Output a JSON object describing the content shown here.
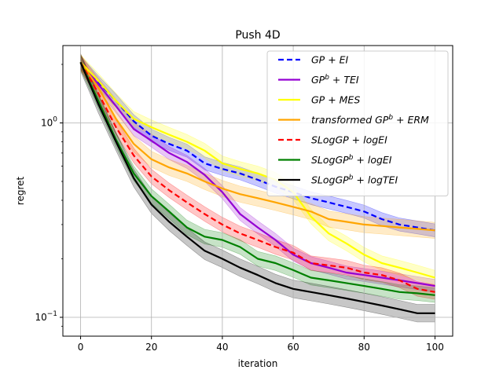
{
  "chart_data": {
    "type": "line",
    "title": "Push 4D",
    "xlabel": "iteration",
    "ylabel": "regret",
    "xlim": [
      -5,
      105
    ],
    "ylim": [
      0.08,
      2.5
    ],
    "yscale": "log",
    "grid": true,
    "legend_position": "top-right",
    "x_ticks": [
      0,
      20,
      40,
      60,
      80,
      100
    ],
    "x_tick_labels": [
      "0",
      "20",
      "40",
      "60",
      "80",
      "100"
    ],
    "y_ticks": [
      1.0,
      0.1
    ],
    "y_tick_labels": [
      "10^0",
      "10^-1"
    ],
    "series": [
      {
        "name": "GP + EI",
        "legend_label": "GP + EI",
        "color": "#0000ff",
        "dash": "dashed",
        "x": [
          0,
          5,
          10,
          15,
          20,
          25,
          30,
          35,
          40,
          45,
          50,
          55,
          60,
          65,
          70,
          75,
          80,
          85,
          90,
          95,
          100
        ],
        "y": [
          2.05,
          1.62,
          1.3,
          1.02,
          0.86,
          0.78,
          0.72,
          0.62,
          0.58,
          0.55,
          0.51,
          0.47,
          0.44,
          0.41,
          0.39,
          0.37,
          0.35,
          0.32,
          0.3,
          0.29,
          0.28
        ],
        "band": [
          0.08,
          0.08,
          0.08,
          0.08,
          0.08,
          0.08,
          0.08,
          0.08,
          0.08,
          0.08,
          0.08,
          0.08,
          0.08,
          0.08,
          0.08,
          0.08,
          0.08,
          0.08,
          0.08,
          0.08,
          0.08
        ]
      },
      {
        "name": "GP^b + TEI",
        "legend_label": "GP + TEI",
        "legend_sup": "b",
        "color": "#9400d3",
        "dash": "solid",
        "x": [
          0,
          5,
          10,
          15,
          20,
          25,
          30,
          35,
          40,
          45,
          50,
          55,
          60,
          65,
          70,
          75,
          80,
          85,
          90,
          95,
          100
        ],
        "y": [
          2.05,
          1.58,
          1.22,
          0.93,
          0.81,
          0.7,
          0.63,
          0.54,
          0.44,
          0.34,
          0.29,
          0.25,
          0.21,
          0.19,
          0.18,
          0.17,
          0.165,
          0.16,
          0.155,
          0.15,
          0.145
        ],
        "band": [
          0.08,
          0.08,
          0.08,
          0.08,
          0.08,
          0.08,
          0.08,
          0.08,
          0.08,
          0.08,
          0.08,
          0.08,
          0.08,
          0.08,
          0.08,
          0.08,
          0.08,
          0.08,
          0.08,
          0.08,
          0.08
        ]
      },
      {
        "name": "GP + MES",
        "legend_label": "GP + MES",
        "color": "#ffff00",
        "dash": "solid",
        "x": [
          0,
          5,
          10,
          15,
          20,
          25,
          30,
          35,
          40,
          45,
          50,
          55,
          60,
          65,
          70,
          75,
          80,
          85,
          90,
          95,
          100
        ],
        "y": [
          2.05,
          1.65,
          1.3,
          1.05,
          0.95,
          0.87,
          0.8,
          0.72,
          0.62,
          0.58,
          0.55,
          0.51,
          0.44,
          0.33,
          0.27,
          0.24,
          0.21,
          0.19,
          0.18,
          0.17,
          0.16
        ],
        "band": [
          0.09,
          0.09,
          0.09,
          0.09,
          0.09,
          0.09,
          0.09,
          0.09,
          0.09,
          0.09,
          0.09,
          0.09,
          0.09,
          0.09,
          0.09,
          0.09,
          0.09,
          0.09,
          0.09,
          0.09,
          0.09
        ]
      },
      {
        "name": "transformed GP^b + ERM",
        "legend_label": "transformed GP + ERM",
        "legend_sup": "b",
        "color": "#ffa500",
        "dash": "solid",
        "x": [
          0,
          5,
          10,
          15,
          20,
          25,
          30,
          35,
          40,
          45,
          50,
          55,
          60,
          65,
          70,
          75,
          80,
          85,
          90,
          95,
          100
        ],
        "y": [
          2.05,
          1.52,
          1.05,
          0.78,
          0.65,
          0.59,
          0.55,
          0.5,
          0.46,
          0.43,
          0.41,
          0.39,
          0.37,
          0.35,
          0.32,
          0.31,
          0.3,
          0.295,
          0.29,
          0.285,
          0.28
        ],
        "band": [
          0.1,
          0.1,
          0.1,
          0.1,
          0.1,
          0.1,
          0.1,
          0.1,
          0.1,
          0.1,
          0.1,
          0.1,
          0.1,
          0.1,
          0.1,
          0.1,
          0.1,
          0.1,
          0.1,
          0.1,
          0.1
        ]
      },
      {
        "name": "SLogGP + logEI",
        "legend_label": "SLogGP + logEI",
        "color": "#ff0000",
        "dash": "dashed",
        "x": [
          0,
          5,
          10,
          15,
          20,
          25,
          30,
          35,
          40,
          45,
          50,
          55,
          60,
          65,
          70,
          75,
          80,
          85,
          90,
          95,
          100
        ],
        "y": [
          2.05,
          1.42,
          0.95,
          0.68,
          0.53,
          0.45,
          0.39,
          0.34,
          0.3,
          0.27,
          0.25,
          0.23,
          0.215,
          0.19,
          0.185,
          0.18,
          0.17,
          0.165,
          0.155,
          0.14,
          0.135
        ],
        "band": [
          0.09,
          0.09,
          0.09,
          0.09,
          0.09,
          0.09,
          0.09,
          0.09,
          0.09,
          0.09,
          0.09,
          0.09,
          0.09,
          0.09,
          0.09,
          0.09,
          0.09,
          0.09,
          0.09,
          0.09,
          0.09
        ]
      },
      {
        "name": "SLogGP^b + logEI",
        "legend_label": "SLogGP + logEI",
        "legend_sup": "b",
        "color": "#008000",
        "dash": "solid",
        "x": [
          0,
          5,
          10,
          15,
          20,
          25,
          30,
          35,
          40,
          45,
          50,
          55,
          60,
          65,
          70,
          75,
          80,
          85,
          90,
          95,
          100
        ],
        "y": [
          2.05,
          1.3,
          0.82,
          0.55,
          0.42,
          0.35,
          0.29,
          0.26,
          0.25,
          0.23,
          0.2,
          0.19,
          0.175,
          0.16,
          0.155,
          0.15,
          0.145,
          0.14,
          0.135,
          0.133,
          0.13
        ],
        "band": [
          0.09,
          0.09,
          0.09,
          0.09,
          0.09,
          0.09,
          0.09,
          0.09,
          0.09,
          0.09,
          0.09,
          0.09,
          0.09,
          0.09,
          0.09,
          0.09,
          0.09,
          0.09,
          0.09,
          0.09,
          0.09
        ]
      },
      {
        "name": "SLogGP^b + logTEI",
        "legend_label": "SLogGP + logTEI",
        "legend_sup": "b",
        "color": "#000000",
        "dash": "solid",
        "x": [
          0,
          5,
          10,
          15,
          20,
          25,
          30,
          35,
          40,
          45,
          50,
          55,
          60,
          65,
          70,
          75,
          80,
          85,
          90,
          95,
          100
        ],
        "y": [
          2.05,
          1.25,
          0.8,
          0.52,
          0.38,
          0.31,
          0.26,
          0.22,
          0.2,
          0.18,
          0.165,
          0.15,
          0.14,
          0.135,
          0.13,
          0.125,
          0.12,
          0.115,
          0.11,
          0.105,
          0.105
        ],
        "band": [
          0.11,
          0.11,
          0.11,
          0.11,
          0.11,
          0.11,
          0.11,
          0.11,
          0.11,
          0.11,
          0.11,
          0.11,
          0.11,
          0.11,
          0.11,
          0.11,
          0.11,
          0.11,
          0.11,
          0.11,
          0.11
        ]
      }
    ]
  }
}
